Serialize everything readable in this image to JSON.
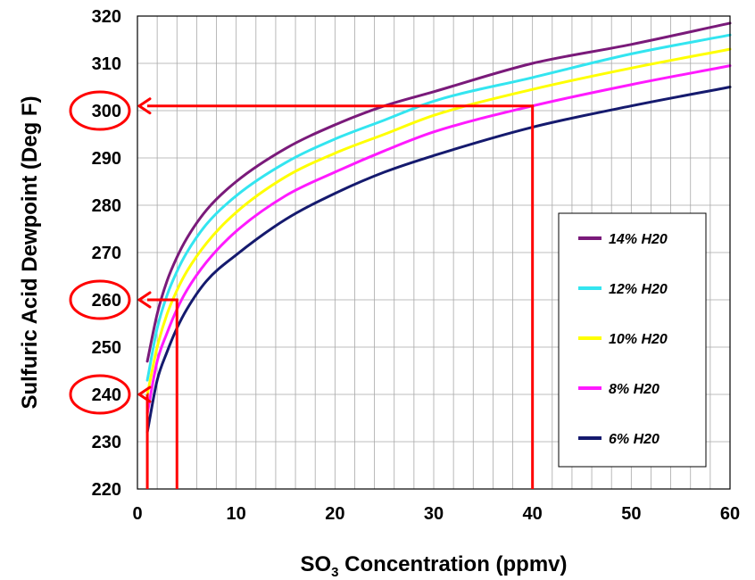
{
  "chart_data": {
    "type": "line",
    "title": "",
    "ylabel": "Sulfuric Acid Dewpoint (Deg F)",
    "xlabel": {
      "prefix": "SO",
      "subscript": "3",
      "suffix": " Concentration (ppmv)"
    },
    "xlim": [
      0,
      60
    ],
    "ylim": [
      220,
      320
    ],
    "x_ticks": [
      "0",
      "10",
      "20",
      "30",
      "40",
      "50",
      "60"
    ],
    "y_ticks": [
      "220",
      "230",
      "240",
      "250",
      "260",
      "270",
      "280",
      "290",
      "300",
      "310",
      "320"
    ],
    "grid": true,
    "legend_position": "bottom-right",
    "series": [
      {
        "name": "14% H20",
        "color": "#7a1a7a",
        "x": [
          1,
          2,
          3,
          4,
          5,
          7,
          10,
          15,
          20,
          25,
          30,
          40,
          50,
          60
        ],
        "y": [
          247,
          257,
          264,
          269,
          273,
          279,
          285,
          292,
          297,
          301,
          304,
          310,
          314,
          318.5
        ]
      },
      {
        "name": "12% H20",
        "color": "#33e5f0",
        "x": [
          1,
          2,
          3,
          4,
          5,
          7,
          10,
          15,
          20,
          25,
          30,
          40,
          50,
          60
        ],
        "y": [
          243,
          254,
          261,
          266,
          270,
          276,
          282,
          289,
          294,
          298,
          302,
          307,
          312,
          316
        ]
      },
      {
        "name": "10% H20",
        "color": "#ffff00",
        "x": [
          1,
          2,
          3,
          4,
          5,
          7,
          10,
          15,
          20,
          25,
          30,
          40,
          50,
          60
        ],
        "y": [
          240,
          250,
          257,
          262,
          266,
          272,
          278.5,
          286,
          291,
          295,
          299,
          304.5,
          309,
          313
        ]
      },
      {
        "name": "8% H20",
        "color": "#ff1aff",
        "x": [
          1,
          2,
          3,
          4,
          5,
          7,
          10,
          15,
          20,
          25,
          30,
          40,
          50,
          60
        ],
        "y": [
          236,
          247,
          253,
          258,
          262,
          268,
          274.5,
          282,
          287,
          291.5,
          295.5,
          301,
          305.5,
          309.5
        ]
      },
      {
        "name": "6% H20",
        "color": "#151a6e",
        "x": [
          1,
          2,
          3,
          4,
          5,
          7,
          10,
          15,
          20,
          25,
          30,
          40,
          50,
          60
        ],
        "y": [
          232,
          243,
          249,
          254,
          258,
          264,
          269.5,
          277,
          282.5,
          287,
          290.5,
          296.5,
          301,
          305
        ]
      }
    ],
    "annotations": {
      "color": "#ff0000",
      "lookup_lines": [
        {
          "x": 1,
          "y": 240
        },
        {
          "x": 4,
          "y": 260
        },
        {
          "x": 40,
          "y": 301
        }
      ],
      "circled_ticks": [
        "300",
        "260",
        "240"
      ]
    }
  }
}
